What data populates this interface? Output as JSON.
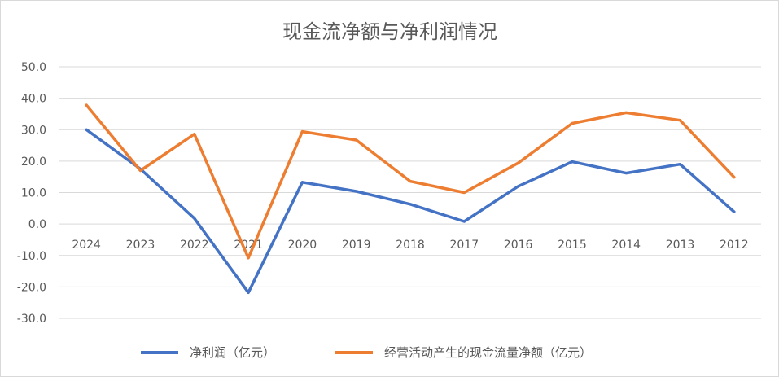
{
  "chart_data": {
    "type": "line",
    "title": "现金流净额与净利润情况",
    "xlabel": "",
    "ylabel": "",
    "categories": [
      "2024",
      "2023",
      "2022",
      "2021",
      "2020",
      "2019",
      "2018",
      "2017",
      "2016",
      "2015",
      "2014",
      "2013",
      "2012"
    ],
    "ylim": [
      -30,
      50
    ],
    "yticks": [
      "50.0",
      "40.0",
      "30.0",
      "20.0",
      "10.0",
      "0.0",
      "-10.0",
      "-20.0",
      "-30.0"
    ],
    "grid": true,
    "legend_position": "bottom",
    "series": [
      {
        "name": "净利润（亿元）",
        "color": "#4472c4",
        "values": [
          30.0,
          17.5,
          1.8,
          -21.8,
          13.3,
          10.4,
          6.3,
          0.8,
          12.0,
          19.8,
          16.2,
          19.0,
          3.9
        ]
      },
      {
        "name": "经营活动产生的现金流量净额（亿元）",
        "color": "#ed7d31",
        "values": [
          37.8,
          17.0,
          28.6,
          -10.8,
          29.4,
          26.7,
          13.6,
          10.0,
          19.4,
          32.0,
          35.4,
          33.0,
          14.9
        ]
      }
    ]
  }
}
